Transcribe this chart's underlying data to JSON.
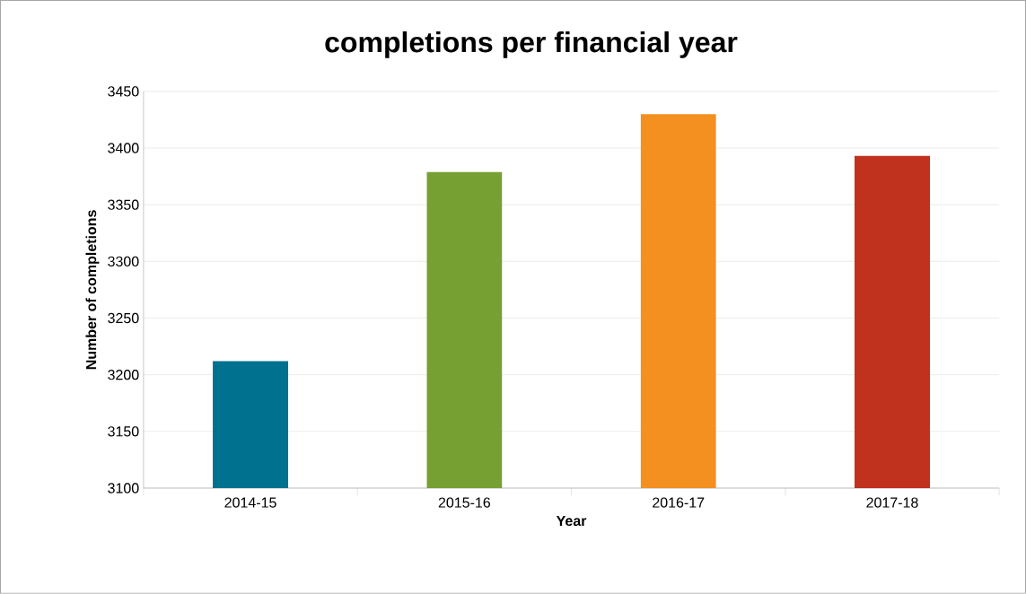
{
  "chart_data": {
    "type": "bar",
    "title": "completions per financial year",
    "xlabel": "Year",
    "ylabel": "Number of completions",
    "categories": [
      "2014-15",
      "2015-16",
      "2016-17",
      "2017-18"
    ],
    "values": [
      3212,
      3379,
      3430,
      3393
    ],
    "colors": [
      "#00718f",
      "#77a033",
      "#f39020",
      "#c0311e"
    ],
    "ylim": [
      3100,
      3450
    ],
    "yticks": [
      3100,
      3150,
      3200,
      3250,
      3300,
      3350,
      3400,
      3450
    ],
    "grid": "y"
  }
}
